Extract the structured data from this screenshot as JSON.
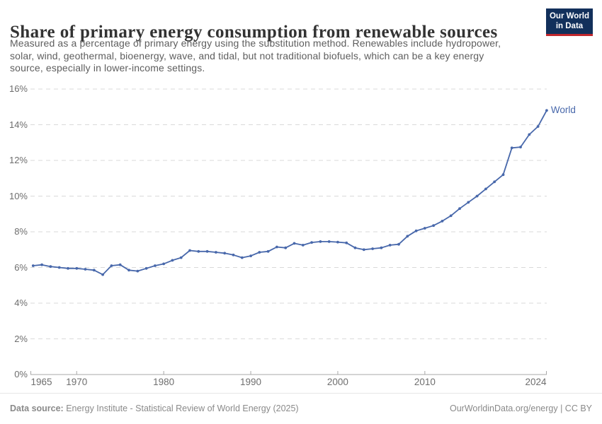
{
  "header": {
    "title": "Share of primary energy consumption from renewable sources",
    "subtitle_lines": [
      "Measured as a percentage of primary energy using the substitution method. Renewables include hydropower,",
      "solar, wind, geothermal, bioenergy, wave, and tidal, but not traditional biofuels, which can be a key energy",
      "source, especially in lower-income settings."
    ],
    "logo": {
      "line1": "Our World",
      "line2": "in Data",
      "bg_color": "#12305b",
      "bar_color": "#c1272d",
      "text_color": "#ffffff"
    }
  },
  "chart_data": {
    "type": "line",
    "title": "Share of primary energy consumption from renewable sources",
    "xlabel": "",
    "ylabel": "",
    "ylim": [
      0,
      16
    ],
    "xlim": [
      1965,
      2024
    ],
    "grid": "horizontal dashed",
    "legend_position": "end-of-line",
    "line_color": "#4868ab",
    "grid_color": "#d9d9d9",
    "axis_color": "#a8a8a8",
    "tick_label_color": "#6e6e6e",
    "y_ticks": [
      {
        "value": 0,
        "label": "0%"
      },
      {
        "value": 2,
        "label": "2%"
      },
      {
        "value": 4,
        "label": "4%"
      },
      {
        "value": 6,
        "label": "6%"
      },
      {
        "value": 8,
        "label": "8%"
      },
      {
        "value": 10,
        "label": "10%"
      },
      {
        "value": 12,
        "label": "12%"
      },
      {
        "value": 14,
        "label": "14%"
      },
      {
        "value": 16,
        "label": "16%"
      }
    ],
    "x_ticks": [
      1965,
      1970,
      1980,
      1990,
      2000,
      2010,
      2024
    ],
    "series": [
      {
        "name": "World",
        "color": "#4868ab",
        "x": [
          1965,
          1966,
          1967,
          1968,
          1969,
          1970,
          1971,
          1972,
          1973,
          1974,
          1975,
          1976,
          1977,
          1978,
          1979,
          1980,
          1981,
          1982,
          1983,
          1984,
          1985,
          1986,
          1987,
          1988,
          1989,
          1990,
          1991,
          1992,
          1993,
          1994,
          1995,
          1996,
          1997,
          1998,
          1999,
          2000,
          2001,
          2002,
          2003,
          2004,
          2005,
          2006,
          2007,
          2008,
          2009,
          2010,
          2011,
          2012,
          2013,
          2014,
          2015,
          2016,
          2017,
          2018,
          2019,
          2020,
          2021,
          2022,
          2023,
          2024
        ],
        "values": [
          6.1,
          6.15,
          6.05,
          6.0,
          5.95,
          5.95,
          5.9,
          5.85,
          5.6,
          6.1,
          6.15,
          5.85,
          5.8,
          5.95,
          6.1,
          6.2,
          6.4,
          6.55,
          6.95,
          6.9,
          6.9,
          6.85,
          6.8,
          6.7,
          6.55,
          6.65,
          6.85,
          6.9,
          7.15,
          7.1,
          7.35,
          7.25,
          7.4,
          7.45,
          7.45,
          7.42,
          7.38,
          7.1,
          7.0,
          7.05,
          7.1,
          7.25,
          7.3,
          7.75,
          8.05,
          8.2,
          8.35,
          8.6,
          8.9,
          9.3,
          9.65,
          10.0,
          10.4,
          10.8,
          11.2,
          12.7,
          12.75,
          13.45,
          13.9,
          14.8
        ]
      }
    ]
  },
  "footer": {
    "source_label": "Data source:",
    "source_text": " Energy Institute - Statistical Review of World Energy (2025)",
    "credit": "OurWorldinData.org/energy | CC BY"
  }
}
